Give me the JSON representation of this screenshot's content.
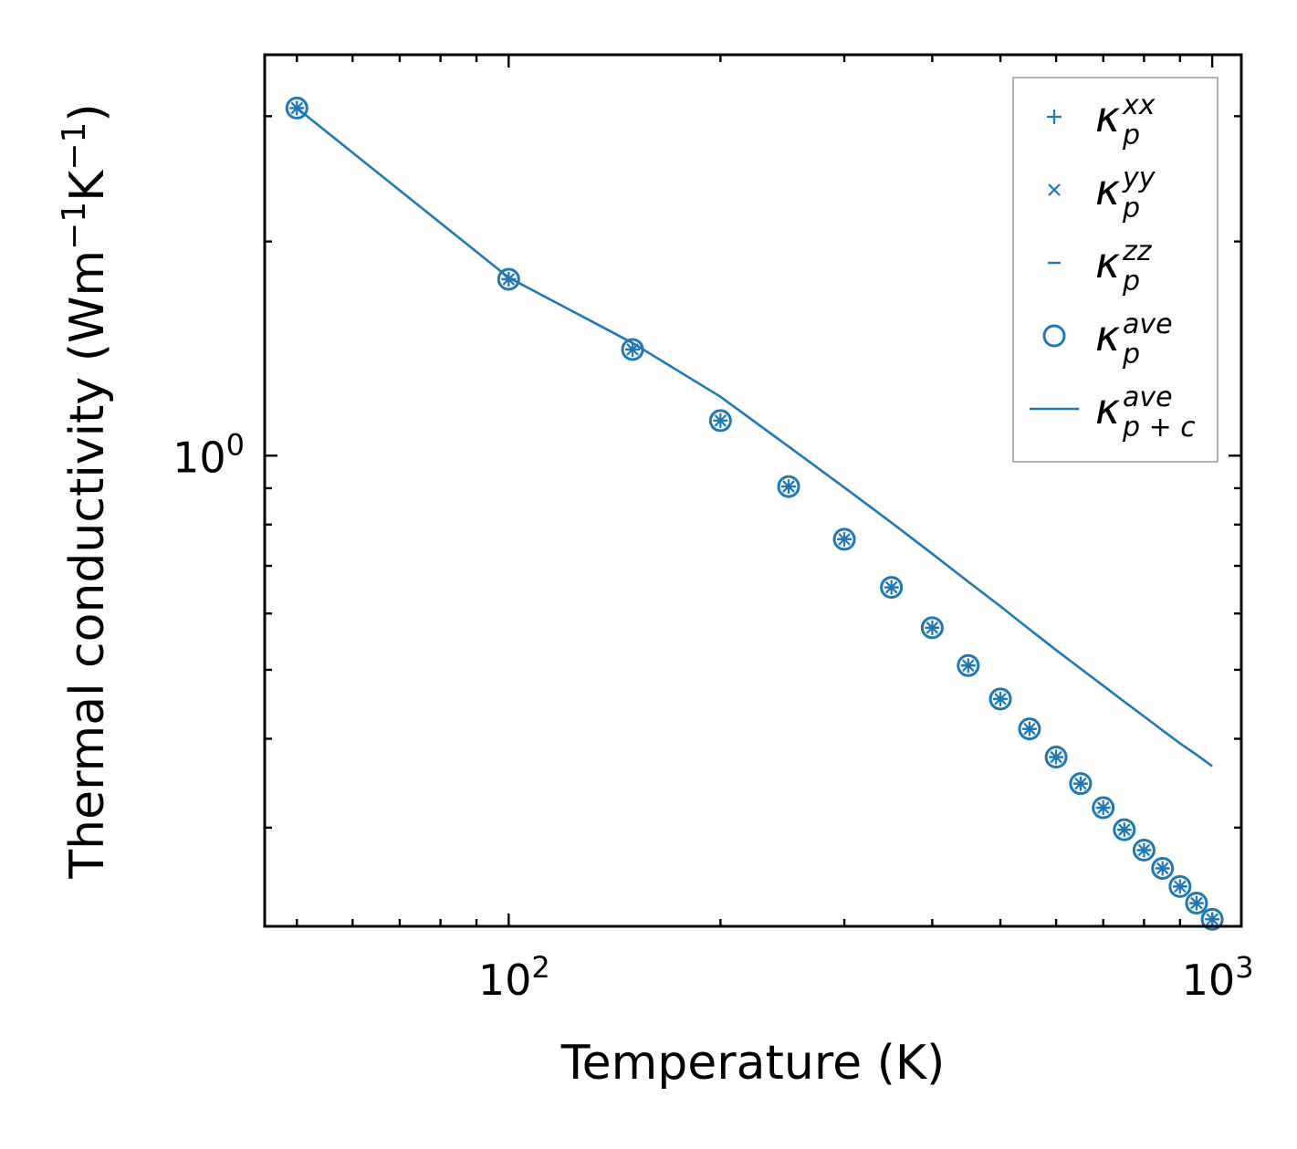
{
  "chart_data": {
    "type": "scatter",
    "title": "",
    "xlabel": "Temperature (K)",
    "ylabel": "Thermal conductivity (Wm",
    "ylabel_unit_parts": [
      "Wm",
      "−1",
      "K",
      "−1",
      ")"
    ],
    "xscale": "log",
    "yscale": "log",
    "xlim": [
      45,
      1100
    ],
    "ylim": [
      0.218,
      3.66
    ],
    "xticks": [
      {
        "base": "10",
        "exp": "2",
        "value": 100
      },
      {
        "base": "10",
        "exp": "3",
        "value": 1000
      }
    ],
    "yticks": [
      {
        "base": "10",
        "exp": "0",
        "value": 1
      }
    ],
    "legend_position": "top-right",
    "x": [
      50,
      100,
      150,
      200,
      250,
      300,
      350,
      400,
      450,
      500,
      550,
      600,
      650,
      700,
      750,
      800,
      850,
      900,
      950,
      1000
    ],
    "series": [
      {
        "name": "κ_p^xx",
        "marker": "plus",
        "values": [
          3.08,
          1.77,
          1.41,
          1.12,
          0.905,
          0.763,
          0.653,
          0.573,
          0.507,
          0.455,
          0.413,
          0.377,
          0.346,
          0.32,
          0.298,
          0.279,
          0.263,
          0.248,
          0.235,
          0.223
        ]
      },
      {
        "name": "κ_p^yy",
        "marker": "x",
        "values": [
          3.08,
          1.77,
          1.41,
          1.12,
          0.905,
          0.763,
          0.653,
          0.573,
          0.507,
          0.455,
          0.413,
          0.377,
          0.346,
          0.32,
          0.298,
          0.279,
          0.263,
          0.248,
          0.235,
          0.223
        ]
      },
      {
        "name": "κ_p^zz",
        "marker": "hline",
        "values": [
          3.08,
          1.77,
          1.41,
          1.12,
          0.905,
          0.763,
          0.653,
          0.573,
          0.507,
          0.455,
          0.413,
          0.377,
          0.346,
          0.32,
          0.298,
          0.279,
          0.263,
          0.248,
          0.235,
          0.223
        ]
      },
      {
        "name": "κ_p^ave",
        "marker": "circle",
        "values": [
          3.08,
          1.77,
          1.41,
          1.12,
          0.905,
          0.763,
          0.653,
          0.573,
          0.507,
          0.455,
          0.413,
          0.377,
          0.346,
          0.32,
          0.298,
          0.279,
          0.263,
          0.248,
          0.235,
          0.223
        ]
      },
      {
        "name": "κ_p+c^ave",
        "marker": "line",
        "values": [
          3.08,
          1.78,
          1.44,
          1.21,
          1.03,
          0.902,
          0.805,
          0.728,
          0.665,
          0.614,
          0.57,
          0.533,
          0.502,
          0.475,
          0.451,
          0.43,
          0.411,
          0.394,
          0.38,
          0.366
        ]
      }
    ],
    "legend": [
      {
        "base": "κ",
        "sub": "p",
        "sup": "xx"
      },
      {
        "base": "κ",
        "sub": "p",
        "sup": "yy"
      },
      {
        "base": "κ",
        "sub": "p",
        "sup": "zz"
      },
      {
        "base": "κ",
        "sub": "p",
        "sup": "ave"
      },
      {
        "base": "κ",
        "sub": "p + c",
        "sup": "ave"
      }
    ],
    "colors": {
      "series": "#1f77b4",
      "axis": "#000000",
      "legend_border": "#999999"
    }
  }
}
